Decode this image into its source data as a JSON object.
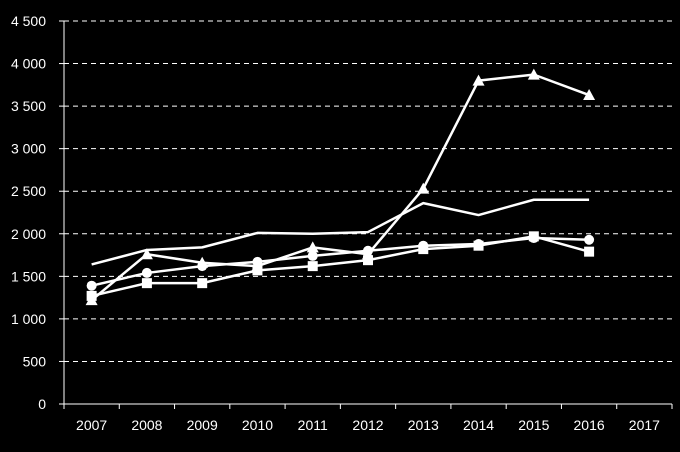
{
  "chart_data": {
    "type": "line",
    "title": "",
    "xlabel": "",
    "ylabel": "",
    "x": [
      "2007",
      "2008",
      "2009",
      "2010",
      "2011",
      "2012",
      "2013",
      "2014",
      "2015",
      "2016",
      "2017"
    ],
    "ylim": [
      0,
      4500
    ],
    "yticks": [
      0,
      500,
      1000,
      1500,
      2000,
      2500,
      3000,
      3500,
      4000,
      4500
    ],
    "ytick_labels": [
      "0",
      "500",
      "1 000",
      "1 500",
      "2 000",
      "2 500",
      "3 000",
      "3 500",
      "4 000",
      "4 500"
    ],
    "grid": "horizontal-dashed",
    "legend": "none",
    "colors": {
      "background": "#000000",
      "line": "#ffffff",
      "grid": "#ffffff",
      "text": "#ffffff"
    },
    "series": [
      {
        "marker": "none",
        "values": [
          1640,
          1810,
          1840,
          2010,
          2000,
          2020,
          2360,
          2220,
          2400,
          2400,
          null
        ]
      },
      {
        "marker": "triangle",
        "values": [
          1220,
          1760,
          1660,
          1620,
          1840,
          1760,
          2530,
          3800,
          3870,
          3630,
          null
        ]
      },
      {
        "marker": "circle",
        "values": [
          1390,
          1540,
          1620,
          1670,
          1740,
          1800,
          1860,
          1880,
          1950,
          1930,
          null
        ]
      },
      {
        "marker": "square",
        "values": [
          1270,
          1420,
          1420,
          1570,
          1620,
          1690,
          1820,
          1860,
          1970,
          1790,
          null
        ]
      }
    ]
  }
}
